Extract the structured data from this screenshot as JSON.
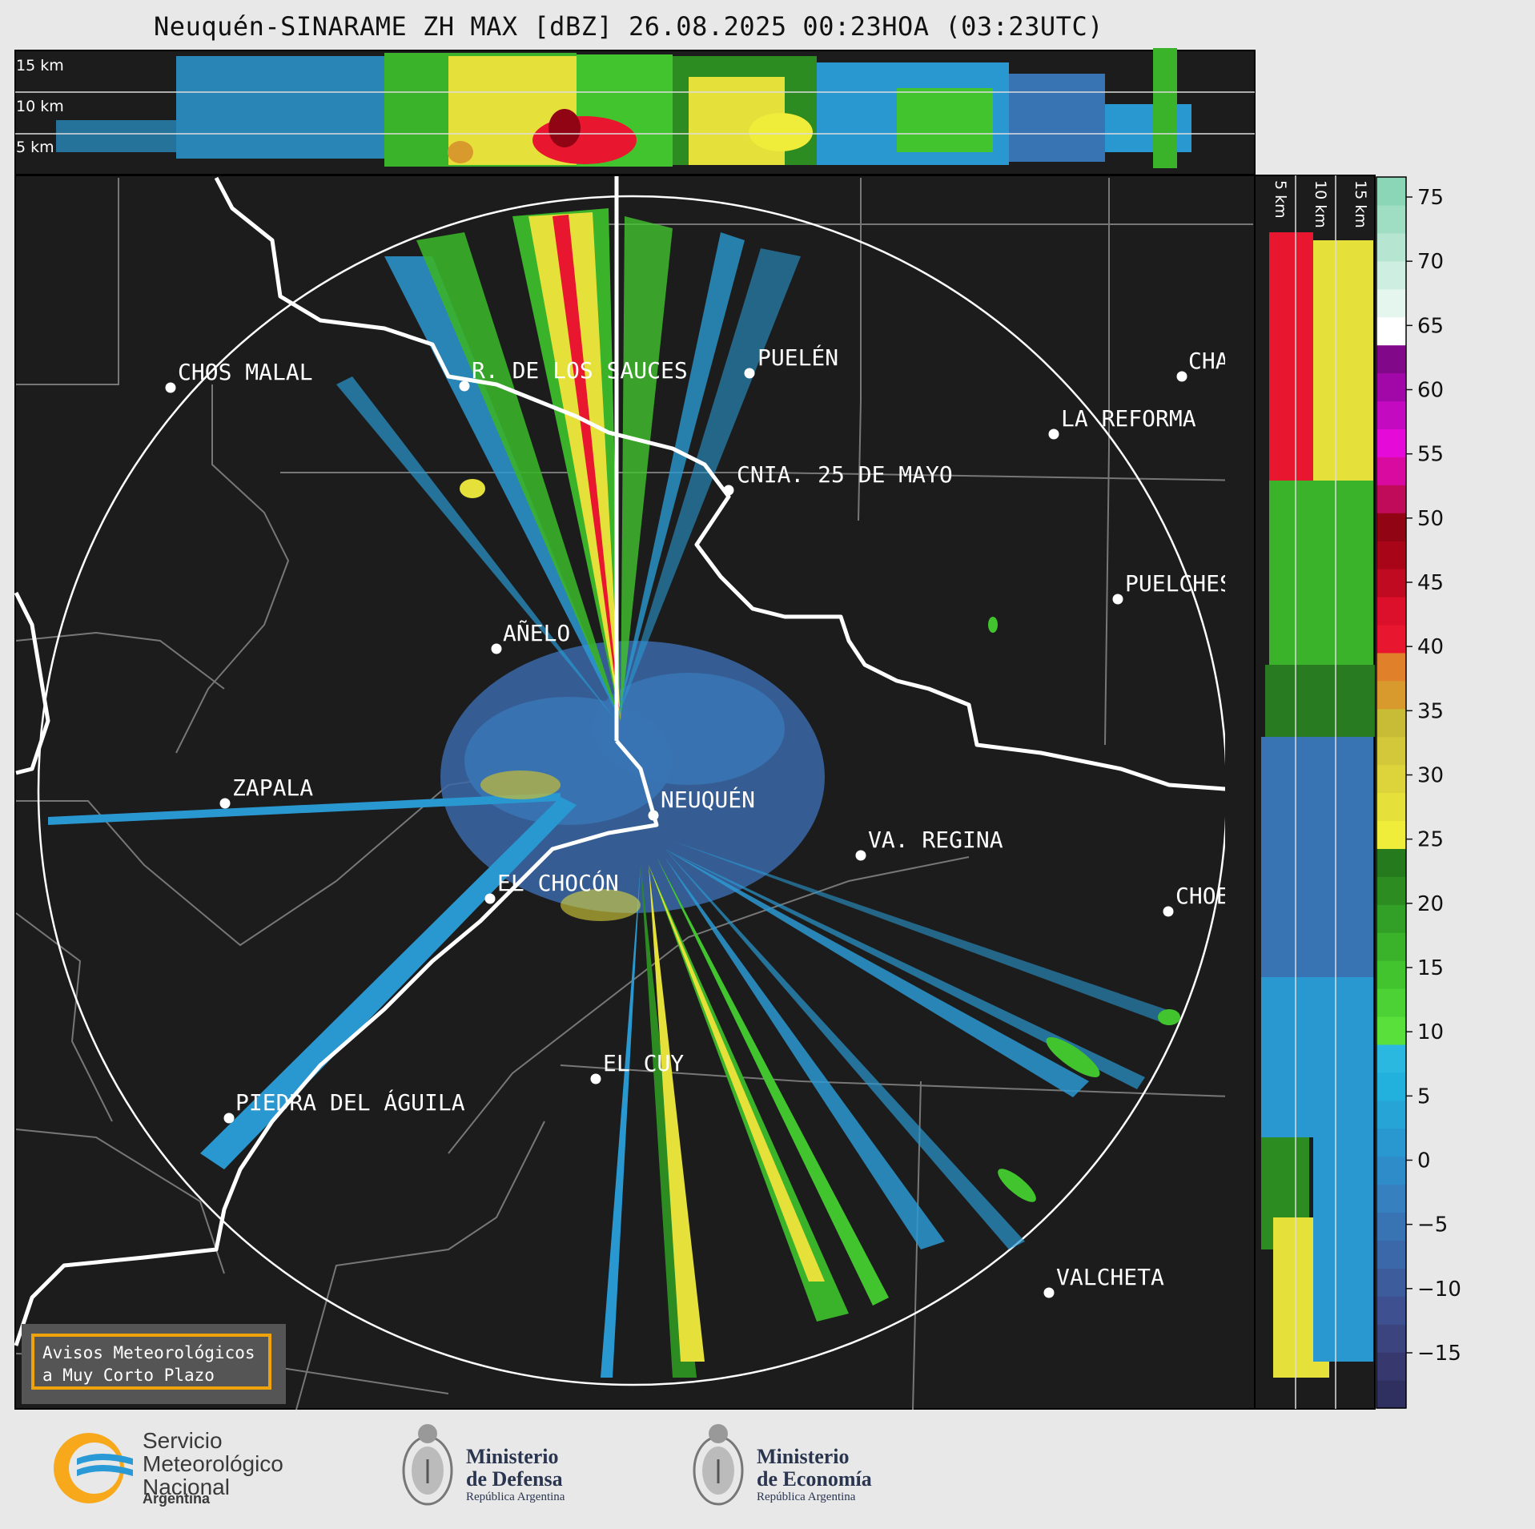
{
  "title": "Neuquén-SINARAME ZH MAX [dBZ] 26.08.2025 00:23HOA (03:23UTC)",
  "top_panel": {
    "km_labels": [
      "15 km",
      "10 km",
      "5 km"
    ]
  },
  "side_panel": {
    "km_labels": [
      "5 km",
      "10 km",
      "15 km"
    ]
  },
  "cities": [
    {
      "name": "CHOS MALAL"
    },
    {
      "name": "R. DE LOS SAUCES"
    },
    {
      "name": "PUELÉN"
    },
    {
      "name": "CHACH"
    },
    {
      "name": "LA REFORMA"
    },
    {
      "name": "CNIA. 25 DE MAYO"
    },
    {
      "name": "PUELCHES"
    },
    {
      "name": "AÑELO"
    },
    {
      "name": "ZAPALA"
    },
    {
      "name": "NEUQUÉN"
    },
    {
      "name": "VA. REGINA"
    },
    {
      "name": "EL CHOCÓN"
    },
    {
      "name": "CHOELI"
    },
    {
      "name": "EL CUY"
    },
    {
      "name": "PIEDRA DEL ÁGUILA"
    },
    {
      "name": "VALCHETA"
    }
  ],
  "colorbar": {
    "ticks": [
      "75",
      "70",
      "65",
      "60",
      "55",
      "50",
      "45",
      "40",
      "35",
      "30",
      "25",
      "20",
      "15",
      "10",
      "5",
      "0",
      "−5",
      "−10",
      "−15"
    ],
    "colors": [
      "#2f2f60",
      "#37386e",
      "#3c4480",
      "#3f5090",
      "#3d5c9c",
      "#3a68a8",
      "#3874b4",
      "#3680c0",
      "#2e8cc8",
      "#2a98d0",
      "#26a4d6",
      "#22b0dc",
      "#2ab8e0",
      "#5ae03a",
      "#4cd234",
      "#42c42e",
      "#3ab22a",
      "#329f26",
      "#2c8c22",
      "#267a1e",
      "#f0ec3a",
      "#e6e03a",
      "#dcd43a",
      "#d2c83a",
      "#c8bc36",
      "#d89a2c",
      "#e0802a",
      "#e8162e",
      "#dc102a",
      "#c00a22",
      "#a80618",
      "#900414",
      "#c00a5a",
      "#d80aa0",
      "#e60ad8",
      "#c40ac0",
      "#a208a8",
      "#82088a",
      "#ffffff",
      "#e4f6ee",
      "#cdeee0",
      "#b6e6d2",
      "#a0dec4",
      "#8ad6b6"
    ]
  },
  "warning_box": {
    "line1": "Avisos Meteorológicos",
    "line2": "a Muy Corto Plazo"
  },
  "logos": {
    "smn": {
      "line1": "Servicio",
      "line2": "Meteorológico",
      "line3": "Nacional",
      "sub": "Argentina"
    },
    "defensa": {
      "line1": "Ministerio",
      "line2": "de Defensa",
      "sub": "República Argentina"
    },
    "economia": {
      "line1": "Ministerio",
      "line2": "de Economía",
      "sub": "República Argentina"
    }
  }
}
